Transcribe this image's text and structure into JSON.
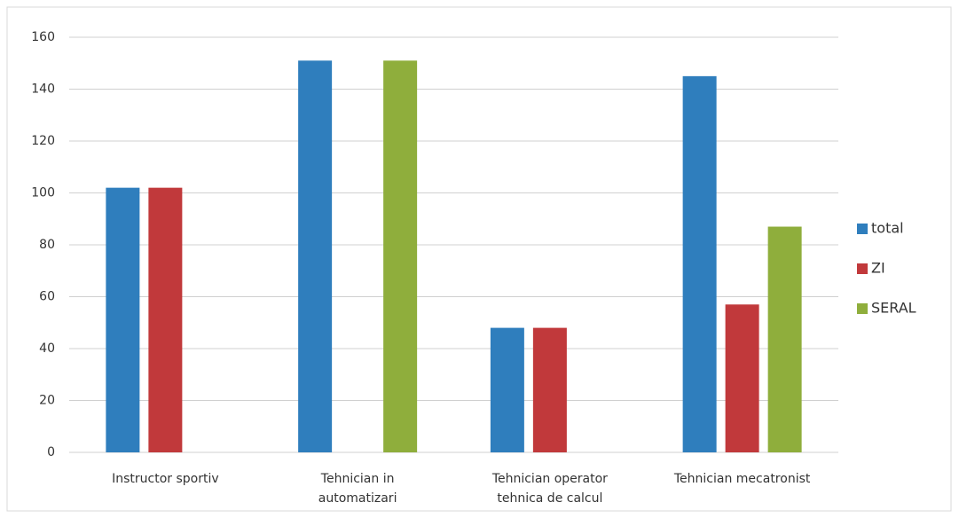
{
  "chart_data": {
    "type": "bar",
    "categories": [
      "Instructor sportiv",
      "Tehnician in automatizari",
      "Tehnician operator tehnica de calcul",
      "Tehnician mecatronist"
    ],
    "series": [
      {
        "name": "total",
        "color": "#2f7ebd",
        "values": [
          102,
          151,
          48,
          145
        ]
      },
      {
        "name": "ZI",
        "color": "#c1393b",
        "values": [
          102,
          null,
          48,
          57
        ]
      },
      {
        "name": "SERAL",
        "color": "#8fae3c",
        "values": [
          null,
          151,
          null,
          87
        ]
      }
    ],
    "ylim": [
      0,
      160
    ],
    "yticks": [
      0,
      20,
      40,
      60,
      80,
      100,
      120,
      140,
      160
    ],
    "grid": true,
    "legend": "right"
  }
}
